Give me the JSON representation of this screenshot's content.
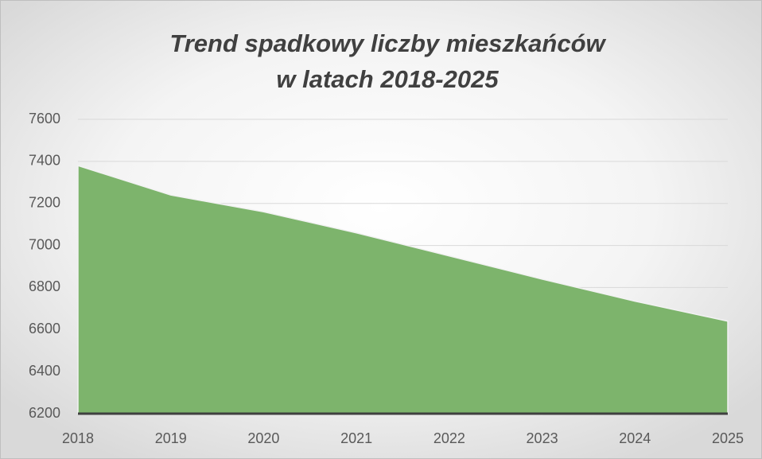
{
  "chart_data": {
    "type": "area",
    "title": [
      "Trend spadkowy liczby mieszkańców",
      "w latach 2018-2025"
    ],
    "categories": [
      "2018",
      "2019",
      "2020",
      "2021",
      "2022",
      "2023",
      "2024",
      "2025"
    ],
    "values": [
      7380,
      7240,
      7160,
      7060,
      6950,
      6840,
      6735,
      6640
    ],
    "color": "#7db46c",
    "ylim": [
      6200,
      7600
    ],
    "yticks": [
      6200,
      6400,
      6600,
      6800,
      7000,
      7200,
      7400,
      7600
    ],
    "grid": true
  }
}
